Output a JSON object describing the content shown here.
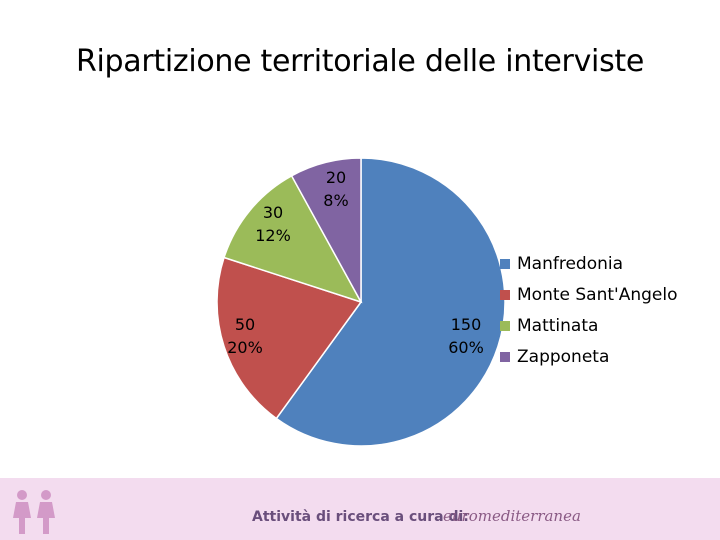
{
  "slide": {
    "title": "Ripartizione territoriale delle interviste"
  },
  "chart_data": {
    "type": "pie",
    "title": "Ripartizione territoriale delle interviste",
    "slices": [
      {
        "name": "Manfredonia",
        "value": 150,
        "percent": "60%",
        "color": "#4f81bd"
      },
      {
        "name": "Monte Sant'Angelo",
        "value": 50,
        "percent": "20%",
        "color": "#c0504d"
      },
      {
        "name": "Mattinata",
        "value": 30,
        "percent": "12%",
        "color": "#9bbb59"
      },
      {
        "name": "Zapponeta",
        "value": 20,
        "percent": "8%",
        "color": "#8064a2"
      }
    ],
    "legend_position": "right"
  },
  "footer": {
    "text": "Attività di ricerca a cura di:",
    "logo_text": "euromediterranea",
    "background": "#f3dcef"
  }
}
